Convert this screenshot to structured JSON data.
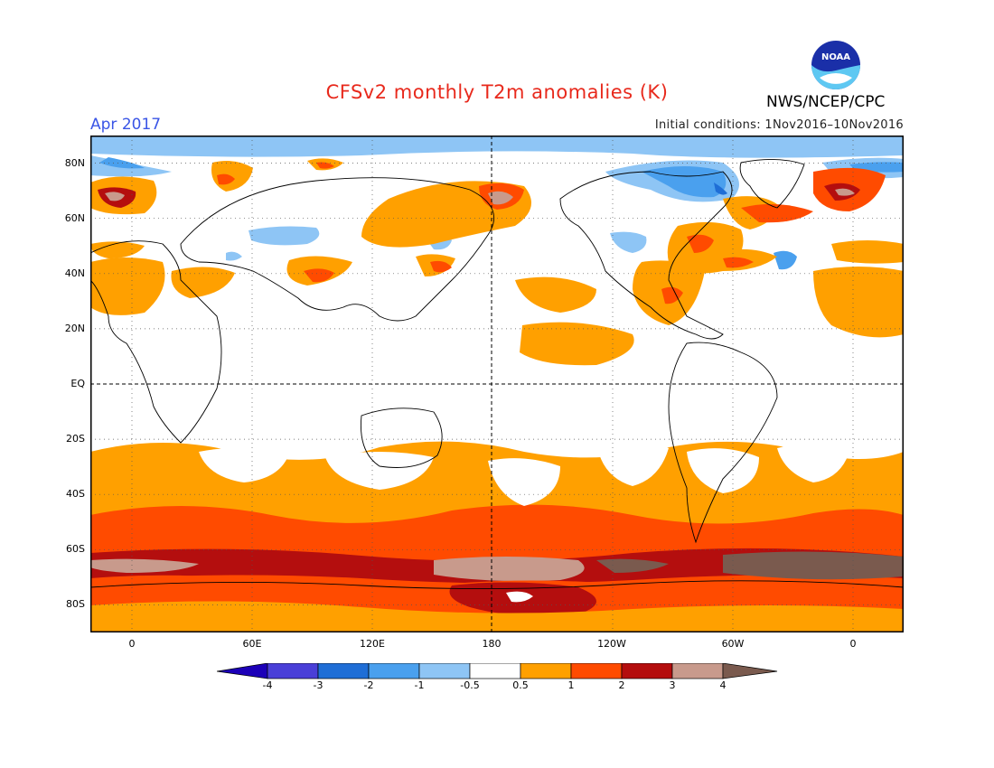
{
  "header": {
    "title": "CFSv2 monthly T2m anomalies (K)",
    "agency": "NWS/NCEP/CPC",
    "target_month": "Apr 2017",
    "initial_conditions": "Initial conditions: 1Nov2016–10Nov2016"
  },
  "logo": {
    "icon": "noaa-logo-icon",
    "text": "NOAA"
  },
  "map": {
    "lat_labels": [
      "80N",
      "60N",
      "40N",
      "20N",
      "EQ",
      "20S",
      "40S",
      "60S",
      "80S"
    ],
    "lon_labels": [
      "0",
      "60E",
      "120E",
      "180",
      "120W",
      "60W",
      "0"
    ],
    "lat_range": [
      -90,
      90
    ],
    "lon_range": [
      -15,
      375
    ],
    "grid": "dotted",
    "equator_line": "dashed",
    "dateline": "dashed"
  },
  "colorbar": {
    "tick_labels": [
      "-4",
      "-3",
      "-2",
      "-1",
      "-0.5",
      "0.5",
      "1",
      "2",
      "3",
      "4"
    ],
    "colors": [
      "#1c00b8",
      "#4a3fd8",
      "#1f6ed6",
      "#4aa0ee",
      "#8ec5f5",
      "#ffffff",
      "#ffa000",
      "#ff4b00",
      "#b40e0e",
      "#c89a8c",
      "#7a5a4e"
    ]
  },
  "legend_colors": {
    "very_cold": "#1f6ed6",
    "cold": "#8ec5f5",
    "neutral": "#ffffff",
    "warm": "#ffa000",
    "warmer": "#ff4b00",
    "hot": "#b40e0e",
    "very_hot": "#c89a8c",
    "extreme": "#7a5a4e"
  }
}
